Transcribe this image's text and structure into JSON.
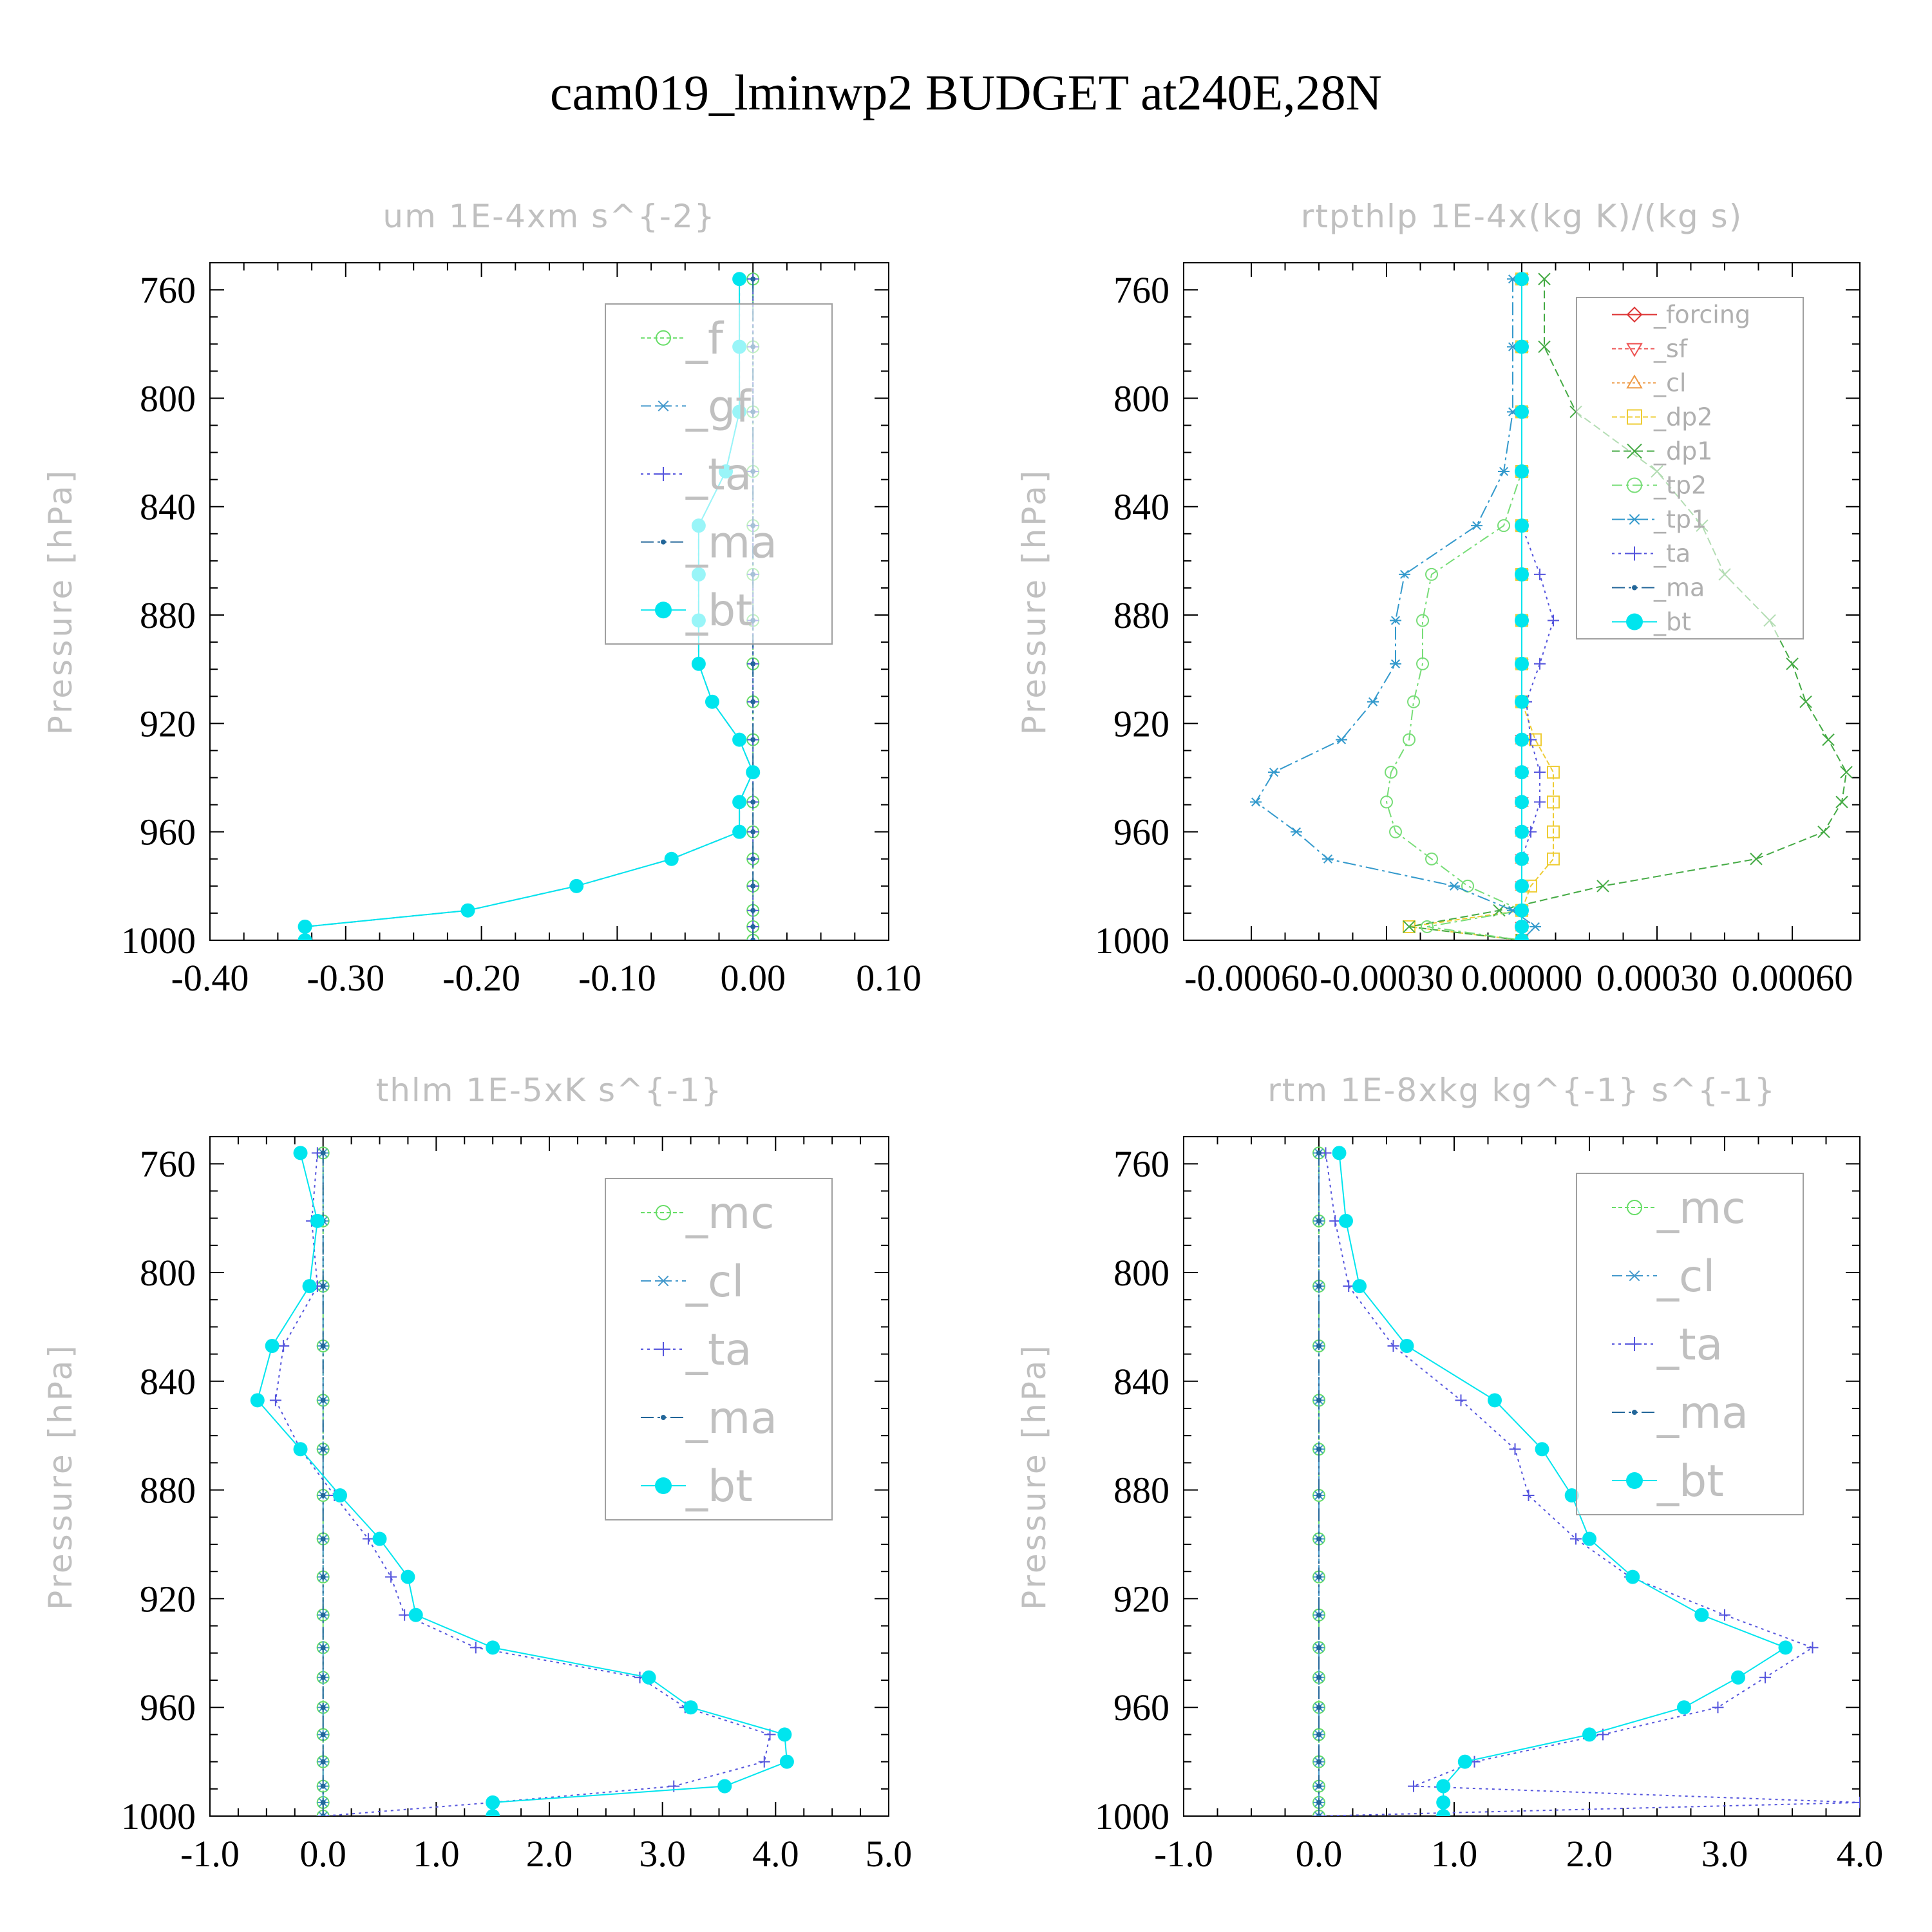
{
  "figure": {
    "title": "cam019_lminwp2  BUDGET at240E,28N"
  },
  "chart_data": [
    {
      "type": "line",
      "title": "um  1E-4xm s^{-2}",
      "ylabel": "Pressure [hPa]",
      "xlim": [
        -0.4,
        0.1
      ],
      "ylim": [
        1000,
        750
      ],
      "xticks": [
        "-0.40",
        "-0.30",
        "-0.20",
        "-0.10",
        "0.00",
        "0.10"
      ],
      "xtick_values": [
        -0.4,
        -0.3,
        -0.2,
        -0.1,
        0.0,
        0.1
      ],
      "yticks": [
        "760",
        "800",
        "840",
        "880",
        "920",
        "960",
        "1000"
      ],
      "legend_style": "big",
      "pressure": [
        756,
        781,
        805,
        827,
        847,
        865,
        882,
        898,
        912,
        926,
        938,
        949,
        960,
        970,
        980,
        989,
        995,
        1000
      ],
      "series": [
        {
          "name": "_f",
          "color": "#66dd66",
          "marker": "circle-open",
          "dash": "6,4",
          "values": [
            0,
            0,
            0,
            0,
            0,
            0,
            0,
            0,
            0,
            0,
            0,
            0,
            0,
            0,
            0,
            0,
            0,
            0
          ]
        },
        {
          "name": "_gf",
          "color": "#4499cc",
          "marker": "star",
          "dash": "16,6,4,6",
          "values": [
            -0.01,
            -0.01,
            -0.01,
            -0.02,
            -0.04,
            -0.04,
            -0.04,
            -0.04,
            -0.03,
            -0.01,
            0.0,
            -0.01,
            -0.01,
            -0.06,
            -0.13,
            -0.21,
            -0.33,
            -0.33
          ]
        },
        {
          "name": "_ta",
          "color": "#5555dd",
          "marker": "plus",
          "dash": "4,6",
          "values": [
            0,
            0,
            0,
            0,
            0,
            0,
            0,
            0,
            0,
            0,
            0,
            0,
            0,
            0,
            0,
            0,
            0,
            0
          ]
        },
        {
          "name": "_ma",
          "color": "#226699",
          "marker": "dot",
          "dash": "20,6,4,6,4,6",
          "values": [
            0,
            0,
            0,
            0,
            0,
            0,
            0,
            0,
            0,
            0,
            0,
            0,
            0,
            0,
            0,
            0,
            0,
            0
          ]
        },
        {
          "name": "_bt",
          "color": "#00e5ee",
          "marker": "filled",
          "dash": "",
          "values": [
            -0.01,
            -0.01,
            -0.01,
            -0.02,
            -0.04,
            -0.04,
            -0.04,
            -0.04,
            -0.03,
            -0.01,
            0.0,
            -0.01,
            -0.01,
            -0.06,
            -0.13,
            -0.21,
            -0.33,
            -0.33
          ]
        }
      ]
    },
    {
      "type": "line",
      "title": "rtpthlp  1E-4x(kg K)/(kg s)",
      "ylabel": "Pressure [hPa]",
      "xlim": [
        -0.00075,
        0.00075
      ],
      "ylim": [
        1000,
        750
      ],
      "xticks": [
        "-0.00060",
        "-0.00030",
        "0.00000",
        "0.00030",
        "0.00060"
      ],
      "xtick_values": [
        -0.0006,
        -0.0003,
        0.0,
        0.0003,
        0.0006
      ],
      "yticks": [
        "760",
        "800",
        "840",
        "880",
        "920",
        "960",
        "1000"
      ],
      "legend_style": "small",
      "pressure": [
        756,
        781,
        805,
        827,
        847,
        865,
        882,
        898,
        912,
        926,
        938,
        949,
        960,
        970,
        980,
        989,
        995,
        1000
      ],
      "series": [
        {
          "name": "_forcing",
          "color": "#dd3333",
          "marker": "diamond",
          "dash": "",
          "values": [
            0,
            0,
            0,
            0,
            0,
            0,
            0,
            0,
            0,
            0,
            0,
            0,
            0,
            0,
            0,
            0,
            0,
            0
          ]
        },
        {
          "name": "_sf",
          "color": "#ee5555",
          "marker": "tri-down",
          "dash": "6,4",
          "values": [
            0,
            0,
            0,
            0,
            0,
            0,
            0,
            0,
            0,
            0,
            0,
            0,
            0,
            0,
            0,
            0,
            0,
            0
          ]
        },
        {
          "name": "_cl",
          "color": "#ee9944",
          "marker": "tri-up",
          "dash": "4,4",
          "values": [
            0,
            0,
            0,
            0,
            0,
            0,
            0,
            0,
            0,
            0,
            0,
            0,
            0,
            0,
            0,
            0,
            0,
            0
          ]
        },
        {
          "name": "_dp2",
          "color": "#eecc33",
          "marker": "square",
          "dash": "8,4",
          "values": [
            0,
            0,
            0,
            0,
            0,
            0,
            0,
            0,
            0,
            3e-05,
            7e-05,
            7e-05,
            7e-05,
            7e-05,
            2e-05,
            0.0,
            -0.00025,
            0.0
          ]
        },
        {
          "name": "_dp1",
          "color": "#44aa44",
          "marker": "x",
          "dash": "12,6",
          "values": [
            5e-05,
            5e-05,
            0.00012,
            0.0003,
            0.0004,
            0.00045,
            0.00055,
            0.0006,
            0.00063,
            0.00068,
            0.00072,
            0.00071,
            0.00067,
            0.00052,
            0.00018,
            -5e-05,
            -0.00025,
            0.0
          ]
        },
        {
          "name": "_tp2",
          "color": "#77dd77",
          "marker": "circle-open",
          "dash": "16,6,4,6",
          "values": [
            0,
            0,
            0,
            0,
            -4e-05,
            -0.0002,
            -0.00022,
            -0.00022,
            -0.00024,
            -0.00025,
            -0.00029,
            -0.0003,
            -0.00028,
            -0.0002,
            -0.00012,
            0.0,
            -0.00021,
            0.0
          ]
        },
        {
          "name": "_tp1",
          "color": "#3399cc",
          "marker": "star",
          "dash": "20,6,4,6",
          "values": [
            -2e-05,
            -2e-05,
            -2e-05,
            -4e-05,
            -0.0001,
            -0.00026,
            -0.00028,
            -0.00028,
            -0.00033,
            -0.0004,
            -0.00055,
            -0.00059,
            -0.0005,
            -0.00043,
            -0.00015,
            -2e-05,
            3e-05,
            0.0
          ]
        },
        {
          "name": "_ta",
          "color": "#5555dd",
          "marker": "plus",
          "dash": "4,6",
          "values": [
            0,
            0,
            0,
            0,
            0,
            4e-05,
            7e-05,
            4e-05,
            1e-05,
            2e-05,
            4e-05,
            4e-05,
            2e-05,
            0.0,
            0.0,
            0.0,
            0.0,
            0.0
          ]
        },
        {
          "name": "_ma",
          "color": "#226699",
          "marker": "dot",
          "dash": "20,6,4,6,4,6",
          "values": [
            0,
            0,
            0,
            0,
            0,
            0,
            0,
            0,
            0,
            0,
            0,
            0,
            0,
            0,
            0,
            0,
            0,
            0
          ]
        },
        {
          "name": "_bt",
          "color": "#00e5ee",
          "marker": "filled",
          "dash": "",
          "values": [
            0,
            0,
            0,
            0,
            0,
            0,
            0,
            0,
            0,
            0,
            0,
            0,
            0,
            0,
            0,
            0,
            0,
            0
          ]
        }
      ]
    },
    {
      "type": "line",
      "title": "thlm  1E-5xK s^{-1}",
      "ylabel": "Pressure [hPa]",
      "xlim": [
        -1.0,
        5.0
      ],
      "ylim": [
        1000,
        750
      ],
      "xticks": [
        "-1.0",
        "0.0",
        "1.0",
        "2.0",
        "3.0",
        "4.0",
        "5.0"
      ],
      "xtick_values": [
        -1.0,
        0.0,
        1.0,
        2.0,
        3.0,
        4.0,
        5.0
      ],
      "yticks": [
        "760",
        "800",
        "840",
        "880",
        "920",
        "960",
        "1000"
      ],
      "legend_style": "big",
      "pressure": [
        756,
        781,
        805,
        827,
        847,
        865,
        882,
        898,
        912,
        926,
        938,
        949,
        960,
        970,
        980,
        989,
        995,
        1000
      ],
      "series": [
        {
          "name": "_mc",
          "color": "#66dd66",
          "marker": "circle-open",
          "dash": "6,4",
          "values": [
            0,
            0,
            0,
            0,
            0,
            0,
            0,
            0,
            0,
            0,
            0,
            0,
            0,
            0,
            0,
            0,
            0,
            0
          ]
        },
        {
          "name": "_cl",
          "color": "#4499cc",
          "marker": "star",
          "dash": "16,6,4,6",
          "values": [
            0,
            0,
            0,
            0,
            0,
            0,
            0,
            0,
            0,
            0,
            0,
            0,
            0,
            0,
            0,
            0,
            0,
            0
          ]
        },
        {
          "name": "_ta",
          "color": "#5555dd",
          "marker": "plus",
          "dash": "4,6",
          "values": [
            -0.05,
            -0.1,
            -0.05,
            -0.35,
            -0.42,
            -0.2,
            0.1,
            0.4,
            0.6,
            0.72,
            1.35,
            2.8,
            3.2,
            3.95,
            3.9,
            3.1,
            1.5,
            0.0
          ]
        },
        {
          "name": "_ma",
          "color": "#226699",
          "marker": "dot",
          "dash": "20,6,4,6,4,6",
          "values": [
            0,
            0,
            0,
            0,
            0,
            0,
            0,
            0,
            0,
            0,
            0,
            0,
            0,
            0,
            0,
            0,
            0,
            0
          ]
        },
        {
          "name": "_bt",
          "color": "#00e5ee",
          "marker": "filled",
          "dash": "",
          "values": [
            -0.2,
            -0.05,
            -0.12,
            -0.45,
            -0.58,
            -0.2,
            0.15,
            0.5,
            0.75,
            0.82,
            1.5,
            2.88,
            3.25,
            4.08,
            4.1,
            3.55,
            1.5,
            1.5
          ]
        }
      ]
    },
    {
      "type": "line",
      "title": "rtm  1E-8xkg kg^{-1} s^{-1}",
      "ylabel": "Pressure [hPa]",
      "xlim": [
        -1.0,
        4.0
      ],
      "ylim": [
        1000,
        750
      ],
      "xticks": [
        "-1.0",
        "0.0",
        "1.0",
        "2.0",
        "3.0",
        "4.0"
      ],
      "xtick_values": [
        -1.0,
        0.0,
        1.0,
        2.0,
        3.0,
        4.0
      ],
      "yticks": [
        "760",
        "800",
        "840",
        "880",
        "920",
        "960",
        "1000"
      ],
      "legend_style": "big",
      "pressure": [
        756,
        781,
        805,
        827,
        847,
        865,
        882,
        898,
        912,
        926,
        938,
        949,
        960,
        970,
        980,
        989,
        995,
        1000
      ],
      "series": [
        {
          "name": "_mc",
          "color": "#66dd66",
          "marker": "circle-open",
          "dash": "6,4",
          "values": [
            0,
            0,
            0,
            0,
            0,
            0,
            0,
            0,
            0,
            0,
            0,
            0,
            0,
            0,
            0,
            0,
            0,
            0
          ]
        },
        {
          "name": "_cl",
          "color": "#4499cc",
          "marker": "star",
          "dash": "16,6,4,6",
          "values": [
            0,
            0,
            0,
            0,
            0,
            0,
            0,
            0,
            0,
            0,
            0,
            0,
            0,
            0,
            0,
            0,
            0,
            0
          ]
        },
        {
          "name": "_ta",
          "color": "#5555dd",
          "marker": "plus",
          "dash": "4,6",
          "values": [
            0.05,
            0.12,
            0.22,
            0.55,
            1.05,
            1.45,
            1.55,
            1.9,
            2.3,
            3.0,
            3.65,
            3.3,
            2.95,
            2.1,
            1.15,
            0.7,
            4.0,
            0.0
          ]
        },
        {
          "name": "_ma",
          "color": "#226699",
          "marker": "dot",
          "dash": "20,6,4,6,4,6",
          "values": [
            0,
            0,
            0,
            0,
            0,
            0,
            0,
            0,
            0,
            0,
            0,
            0,
            0,
            0,
            0,
            0,
            0,
            0
          ]
        },
        {
          "name": "_bt",
          "color": "#00e5ee",
          "marker": "filled",
          "dash": "",
          "values": [
            0.15,
            0.2,
            0.3,
            0.65,
            1.3,
            1.65,
            1.87,
            2.0,
            2.32,
            2.83,
            3.45,
            3.1,
            2.7,
            2.0,
            1.08,
            0.92,
            0.92,
            0.92
          ]
        }
      ]
    }
  ]
}
